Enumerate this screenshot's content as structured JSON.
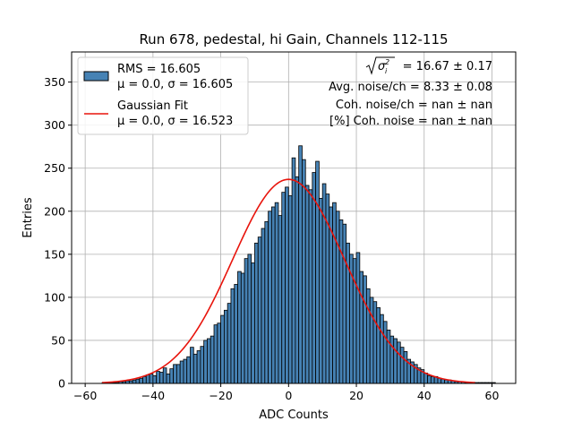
{
  "chart_data": {
    "type": "bar",
    "title": "Run 678, pedestal, hi Gain, Channels 112-115",
    "xlabel": "ADC Counts",
    "ylabel": "Entries",
    "xlim": [
      -64,
      67
    ],
    "ylim": [
      0,
      385
    ],
    "xticks": [
      -60,
      -40,
      -20,
      0,
      20,
      40,
      60
    ],
    "yticks": [
      0,
      50,
      100,
      150,
      200,
      250,
      300,
      350
    ],
    "grid": true,
    "legend_position": "top-left",
    "colors": {
      "bars": "#4682b4",
      "bar_edge": "#000000",
      "fit": "#e8140c",
      "grid": "#b0b0b0"
    },
    "histogram": {
      "name": "RMS = 16.605",
      "name_line2": "μ = 0.0, σ = 16.605",
      "bin_start": -55,
      "bin_width": 1,
      "counts": [
        1,
        1,
        1,
        1,
        1,
        2,
        2,
        3,
        3,
        4,
        5,
        6,
        8,
        10,
        11,
        9,
        14,
        13,
        18,
        11,
        17,
        22,
        22,
        26,
        28,
        31,
        42,
        34,
        38,
        43,
        50,
        52,
        55,
        68,
        70,
        79,
        85,
        93,
        110,
        115,
        130,
        128,
        145,
        150,
        140,
        163,
        170,
        180,
        188,
        200,
        205,
        210,
        195,
        222,
        228,
        218,
        262,
        240,
        276,
        260,
        230,
        225,
        245,
        258,
        215,
        232,
        220,
        205,
        210,
        200,
        190,
        185,
        163,
        150,
        145,
        152,
        130,
        125,
        110,
        100,
        95,
        88,
        80,
        72,
        62,
        55,
        52,
        48,
        42,
        37,
        28,
        25,
        22,
        18,
        16,
        12,
        9,
        8,
        8,
        6,
        5,
        4,
        4,
        3,
        2,
        2,
        2,
        1,
        1,
        1,
        1,
        1,
        1,
        1,
        1,
        1
      ]
    },
    "fit": {
      "name": "Gaussian Fit",
      "name_line2": "μ = 0.0, σ = 16.523",
      "mu": 0.0,
      "sigma": 16.523,
      "amplitude": 237,
      "x_range": [
        -55,
        55
      ]
    },
    "annotations": {
      "line1_rest": " = 16.67 ± 0.17",
      "line2": "Avg. noise/ch = 8.33 ± 0.08",
      "line3": "Coh. noise/ch = nan ± nan",
      "line4": "[%] Coh. noise = nan ± nan"
    }
  }
}
